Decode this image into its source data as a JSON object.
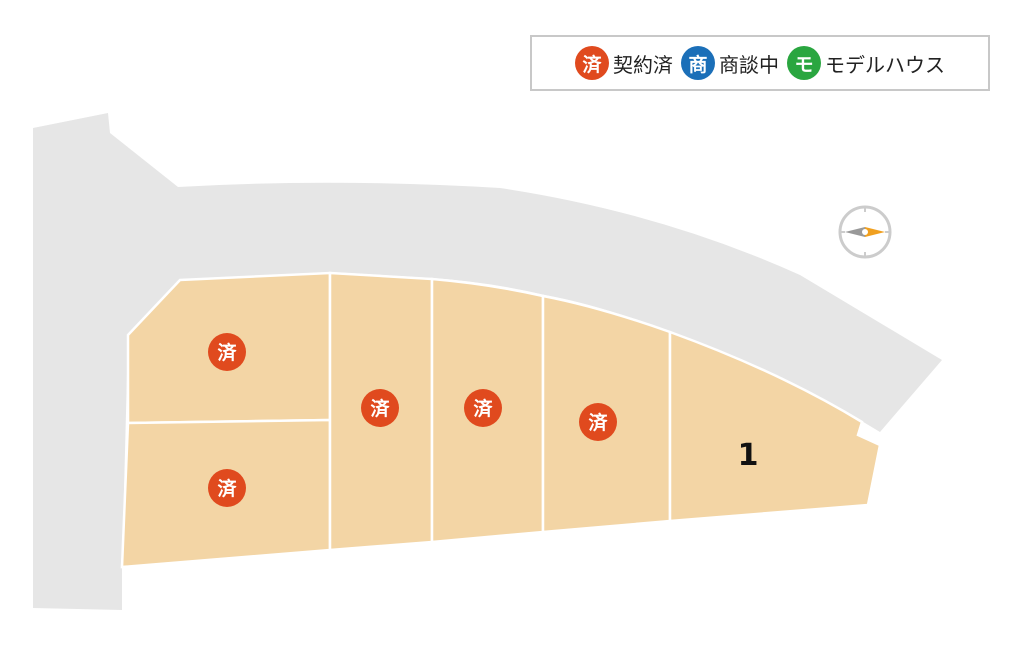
{
  "legend": [
    {
      "badge": "済",
      "label": "契約済",
      "color": "#e04a1e"
    },
    {
      "badge": "商",
      "label": "商談中",
      "color": "#1b6fb8"
    },
    {
      "badge": "モ",
      "label": "モデルハウス",
      "color": "#2aa640"
    }
  ],
  "lots": [
    {
      "status_badge": "済",
      "status": "契約済"
    },
    {
      "status_badge": "済",
      "status": "契約済"
    },
    {
      "status_badge": "済",
      "status": "契約済"
    },
    {
      "status_badge": "済",
      "status": "契約済"
    },
    {
      "status_badge": "済",
      "status": "契約済"
    },
    {
      "number": "1"
    }
  ],
  "colors": {
    "road": "#e6e6e6",
    "lot": "#f3d5a5",
    "sold": "#e04a1e",
    "compass_north": "#f0a020"
  },
  "compass": {
    "icon": "compass-icon",
    "north": "right"
  }
}
